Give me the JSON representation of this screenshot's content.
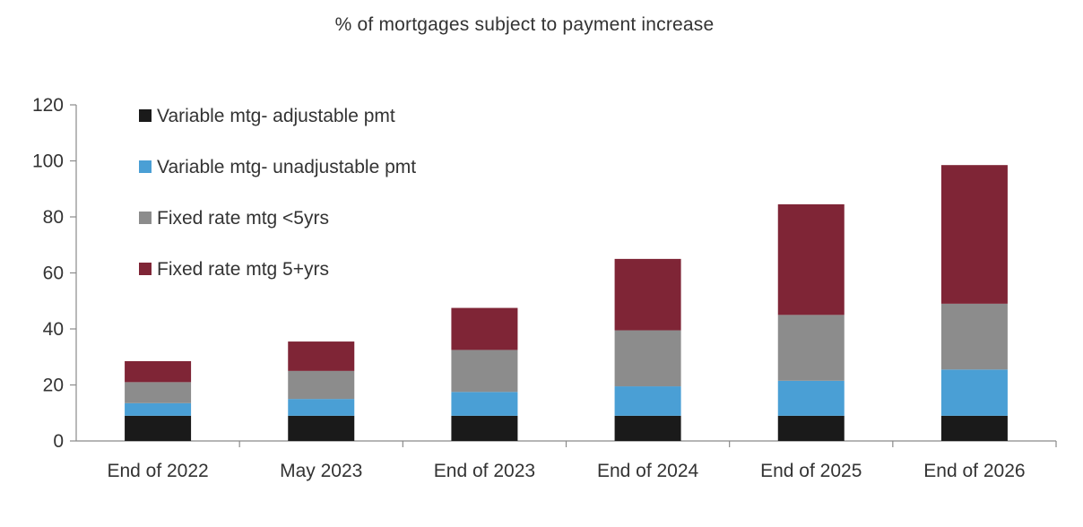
{
  "chart_data": {
    "type": "bar",
    "stacked": true,
    "title": "% of mortgages subject to payment increase",
    "xlabel": "",
    "ylabel": "",
    "ylim": [
      0,
      120
    ],
    "yticks": [
      0,
      20,
      40,
      60,
      80,
      100,
      120
    ],
    "grid": false,
    "legend_position": "top-left",
    "categories": [
      "End of 2022",
      "May 2023",
      "End of 2023",
      "End of 2024",
      "End of 2025",
      "End of 2026"
    ],
    "series": [
      {
        "name": "Variable mtg- adjustable pmt",
        "color": "#1a1a1a",
        "values": [
          9,
          9,
          9,
          9,
          9,
          9
        ]
      },
      {
        "name": "Variable mtg- unadjustable pmt",
        "color": "#4a9fd5",
        "values": [
          4.5,
          6,
          8.5,
          10.5,
          12.5,
          16.5
        ]
      },
      {
        "name": "Fixed rate mtg <5yrs",
        "color": "#8c8c8c",
        "values": [
          7.5,
          10,
          15,
          20,
          23.5,
          23.5
        ]
      },
      {
        "name": "Fixed rate mtg 5+yrs",
        "color": "#7f2536",
        "values": [
          7.5,
          10.5,
          15,
          25.5,
          39.5,
          49.5
        ]
      }
    ]
  }
}
